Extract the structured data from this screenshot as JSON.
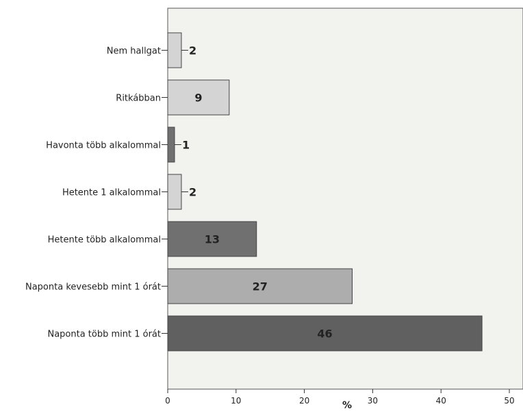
{
  "chart_data": {
    "type": "bar",
    "orientation": "horizontal",
    "categories": [
      "Nem hallgat",
      "Ritkábban",
      "Havonta több alkalommal",
      "Hetente 1 alkalommal",
      "Hetente több alkalommal",
      "Naponta kevesebb mint 1 órát",
      "Naponta több mint 1 órát"
    ],
    "values": [
      2,
      9,
      1,
      2,
      13,
      27,
      46
    ],
    "data_labels": [
      "2",
      "9",
      "1",
      "2",
      "13",
      "27",
      "46"
    ],
    "bar_colors": [
      "#d4d4d4",
      "#d4d4d4",
      "#707070",
      "#d4d4d4",
      "#707070",
      "#adadad",
      "#606060"
    ],
    "xlabel": "%",
    "ylabel": "",
    "xlim": [
      0,
      52
    ],
    "x_ticks": [
      0,
      10,
      20,
      30,
      40,
      50
    ],
    "x_tick_labels": [
      "0",
      "10",
      "20",
      "30",
      "40",
      "50"
    ],
    "grid": false,
    "legend": "none",
    "plot_background": "#f2f2ee",
    "bar_border_color": "#444444"
  }
}
